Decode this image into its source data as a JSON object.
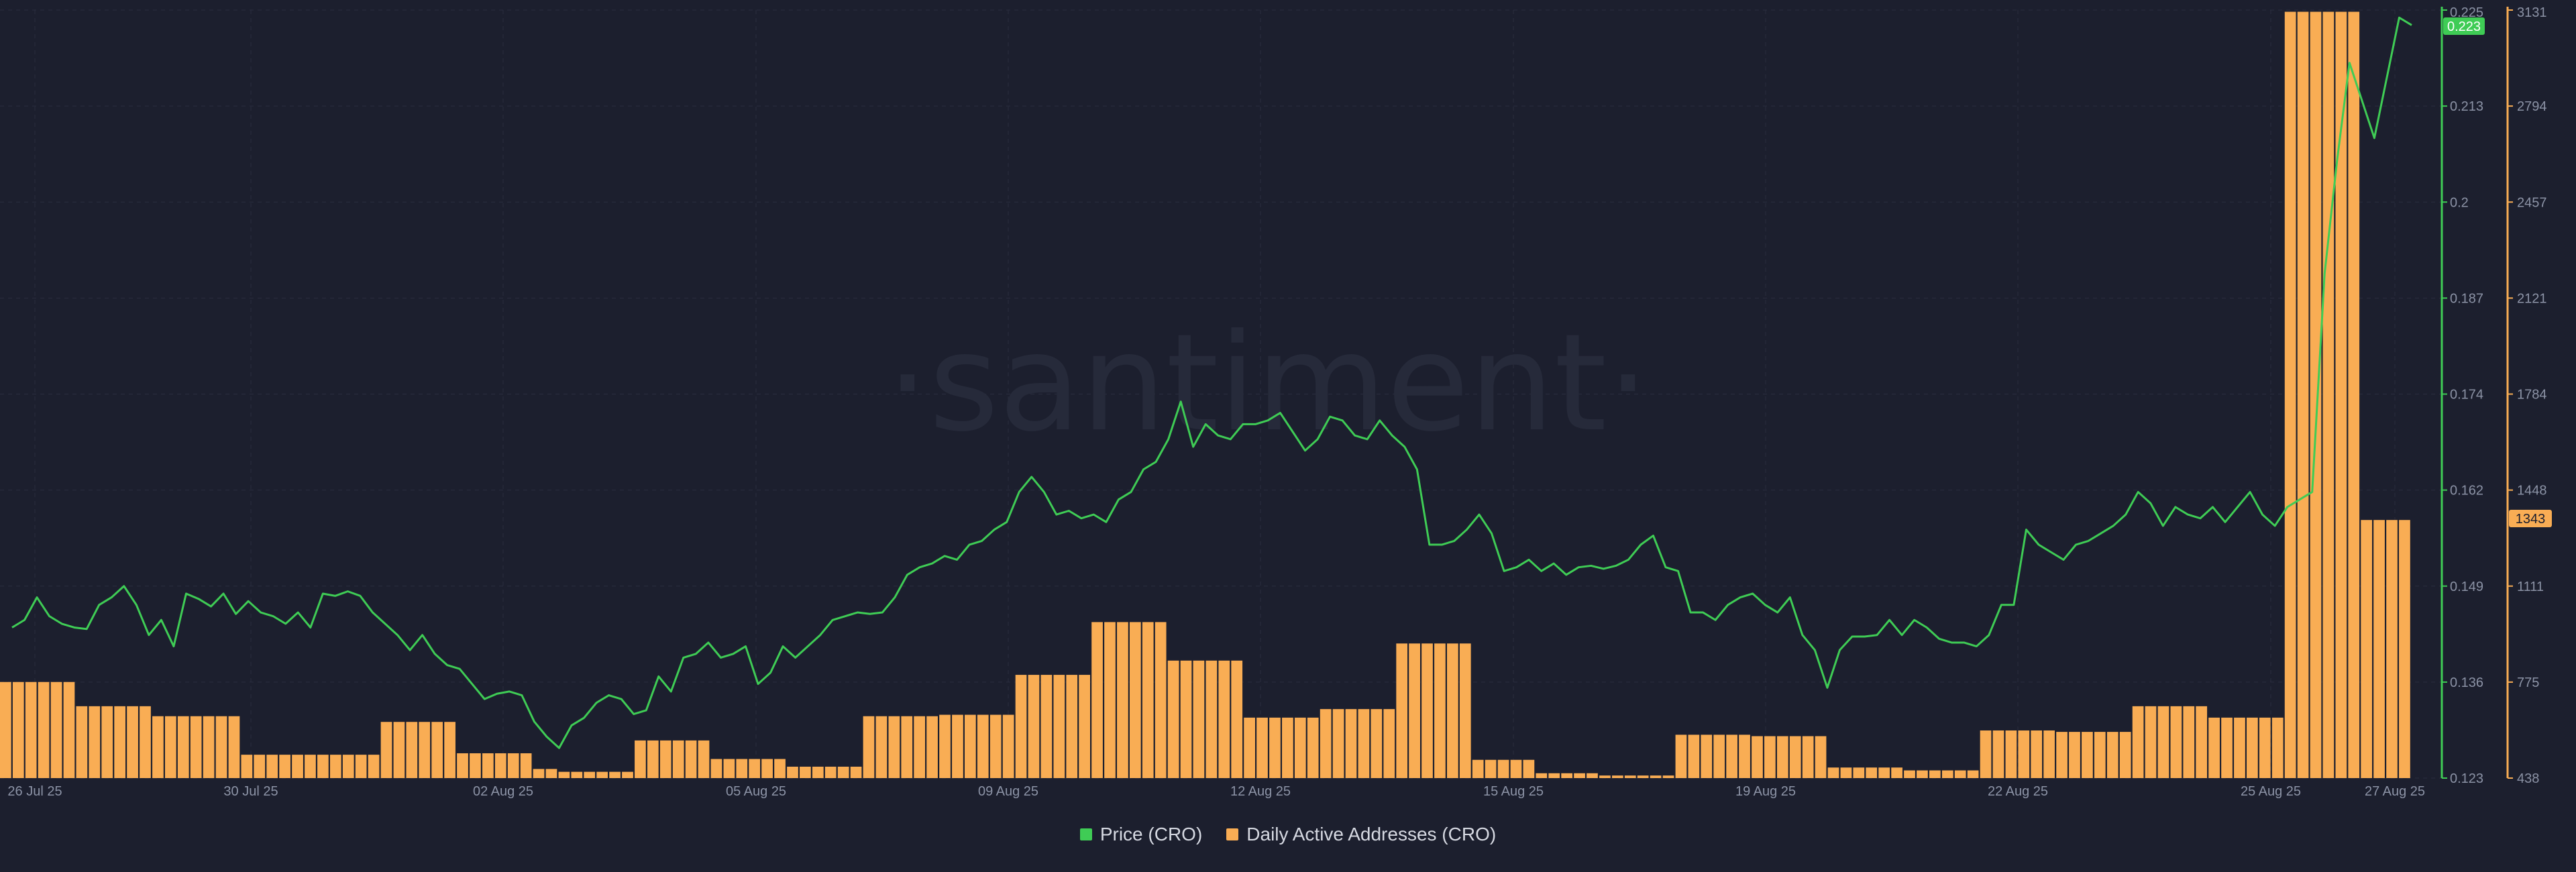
{
  "watermark": "·santiment·",
  "colors": {
    "background": "#1c1f2e",
    "price": "#3fcc55",
    "addresses": "#f9ad54",
    "grid": "#2a2e3f"
  },
  "legend": {
    "price_label": "Price (CRO)",
    "addresses_label": "Daily Active Addresses (CRO)"
  },
  "chart_data": {
    "type": "bar+line",
    "x_ticks": [
      "26 Jul 25",
      "30 Jul 25",
      "02 Aug 25",
      "05 Aug 25",
      "09 Aug 25",
      "12 Aug 25",
      "15 Aug 25",
      "19 Aug 25",
      "22 Aug 25",
      "25 Aug 25",
      "27 Aug 25"
    ],
    "price_axis": {
      "ticks": [
        "0.225",
        "0.213",
        "0.2",
        "0.187",
        "0.174",
        "0.162",
        "0.149",
        "0.136",
        "0.123"
      ],
      "ylim": [
        0.123,
        0.225
      ]
    },
    "addresses_axis": {
      "ticks": [
        "3131",
        "2794",
        "2457",
        "2121",
        "1784",
        "1448",
        "1111",
        "775",
        "438"
      ],
      "ylim": [
        438,
        3131
      ]
    },
    "current_price_label": "0.223",
    "current_addresses_label": "1343",
    "addresses": {
      "name": "Daily Active Addresses (CRO)",
      "values": [
        775,
        775,
        775,
        775,
        775,
        775,
        690,
        690,
        690,
        690,
        690,
        690,
        655,
        655,
        655,
        655,
        655,
        655,
        655,
        520,
        520,
        520,
        520,
        520,
        520,
        520,
        520,
        520,
        520,
        520,
        635,
        635,
        635,
        635,
        635,
        635,
        525,
        525,
        525,
        525,
        525,
        525,
        470,
        470,
        460,
        460,
        460,
        460,
        460,
        460,
        570,
        570,
        570,
        570,
        570,
        570,
        505,
        505,
        505,
        505,
        505,
        505,
        478,
        478,
        478,
        478,
        478,
        478,
        655,
        655,
        655,
        655,
        655,
        655,
        660,
        660,
        660,
        660,
        660,
        660,
        800,
        800,
        800,
        800,
        800,
        800,
        985,
        985,
        985,
        985,
        985,
        985,
        850,
        850,
        850,
        850,
        850,
        850,
        650,
        650,
        650,
        650,
        650,
        650,
        680,
        680,
        680,
        680,
        680,
        680,
        910,
        910,
        910,
        910,
        910,
        910,
        502,
        502,
        502,
        502,
        502,
        455,
        455,
        455,
        455,
        455,
        447,
        447,
        447,
        447,
        447,
        447,
        590,
        590,
        590,
        590,
        590,
        590,
        585,
        585,
        585,
        585,
        585,
        585,
        475,
        475,
        475,
        475,
        475,
        475,
        465,
        465,
        465,
        465,
        465,
        465,
        605,
        605,
        605,
        605,
        605,
        605,
        600,
        600,
        600,
        600,
        600,
        600,
        690,
        690,
        690,
        690,
        690,
        690,
        650,
        650,
        650,
        650,
        650,
        650,
        3125,
        3125,
        3125,
        3125,
        3125,
        3125,
        1343,
        1343,
        1343,
        1343
      ]
    },
    "price": {
      "name": "Price (CRO)",
      "values": [
        0.143,
        0.144,
        0.147,
        0.1445,
        0.1435,
        0.143,
        0.1428,
        0.146,
        0.147,
        0.1485,
        0.146,
        0.142,
        0.144,
        0.1405,
        0.1475,
        0.1468,
        0.1458,
        0.1475,
        0.1448,
        0.1465,
        0.145,
        0.1445,
        0.1435,
        0.145,
        0.143,
        0.1475,
        0.1472,
        0.1478,
        0.1472,
        0.145,
        0.1435,
        0.142,
        0.14,
        0.142,
        0.1395,
        0.138,
        0.1375,
        0.1355,
        0.1335,
        0.1342,
        0.1345,
        0.134,
        0.1305,
        0.1285,
        0.127,
        0.13,
        0.131,
        0.133,
        0.134,
        0.1335,
        0.1315,
        0.132,
        0.1365,
        0.1345,
        0.139,
        0.1395,
        0.141,
        0.139,
        0.1395,
        0.1405,
        0.1355,
        0.137,
        0.1405,
        0.139,
        0.1405,
        0.142,
        0.144,
        0.1445,
        0.145,
        0.1448,
        0.145,
        0.147,
        0.15,
        0.151,
        0.1515,
        0.1525,
        0.152,
        0.154,
        0.1545,
        0.156,
        0.157,
        0.161,
        0.163,
        0.161,
        0.158,
        0.1585,
        0.1575,
        0.158,
        0.157,
        0.16,
        0.161,
        0.164,
        0.165,
        0.168,
        0.173,
        0.167,
        0.17,
        0.1685,
        0.168,
        0.17,
        0.17,
        0.1705,
        0.1715,
        0.169,
        0.1665,
        0.168,
        0.171,
        0.1705,
        0.1685,
        0.168,
        0.1705,
        0.1685,
        0.167,
        0.164,
        0.154,
        0.154,
        0.1545,
        0.156,
        0.158,
        0.1555,
        0.1505,
        0.151,
        0.152,
        0.1505,
        0.1515,
        0.15,
        0.151,
        0.1512,
        0.1508,
        0.1512,
        0.152,
        0.154,
        0.1552,
        0.151,
        0.1505,
        0.145,
        0.145,
        0.144,
        0.146,
        0.147,
        0.1475,
        0.146,
        0.145,
        0.147,
        0.142,
        0.14,
        0.135,
        0.14,
        0.1418,
        0.1418,
        0.142,
        0.144,
        0.142,
        0.144,
        0.143,
        0.1415,
        0.141,
        0.141,
        0.1405,
        0.142,
        0.146,
        0.146,
        0.156,
        0.154,
        0.153,
        0.152,
        0.154,
        0.1545,
        0.1555,
        0.1565,
        0.158,
        0.161,
        0.1595,
        0.1565,
        0.159,
        0.158,
        0.1575,
        0.159,
        0.157,
        0.159,
        0.161,
        0.158,
        0.1565,
        0.159,
        0.16,
        0.161,
        0.19,
        0.205,
        0.218,
        0.213,
        0.208,
        0.216,
        0.224,
        0.223
      ]
    },
    "legend_position": "bottom",
    "grid": true
  }
}
